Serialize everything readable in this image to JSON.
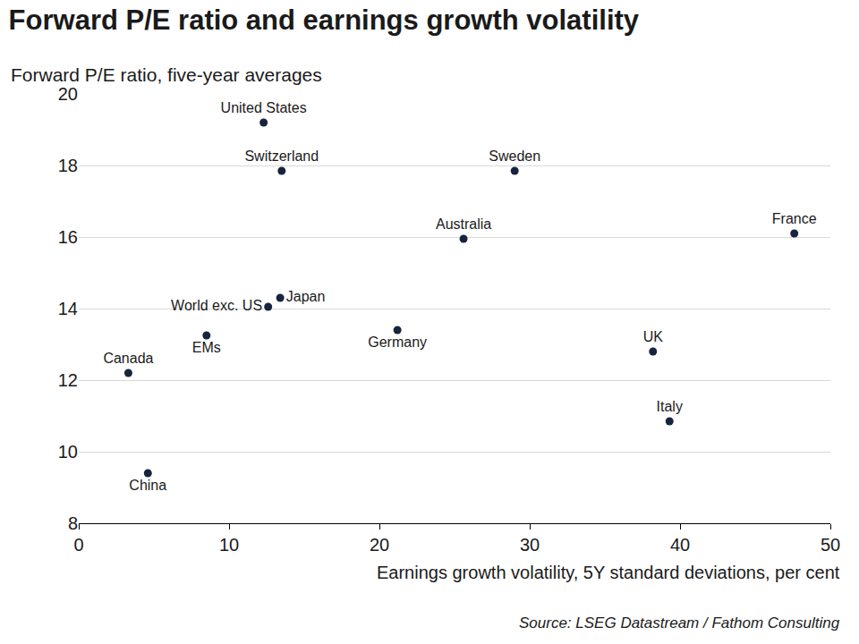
{
  "chart_data": {
    "type": "scatter",
    "title": "Forward P/E ratio and earnings growth volatility",
    "subtitle": "Forward P/E ratio, five-year averages",
    "x_label": "Earnings growth volatility, 5Y standard deviations, per cent",
    "source": "Source: LSEG Datastream / Fathom Consulting",
    "labels": [
      "United States",
      "Switzerland",
      "Sweden",
      "Australia",
      "France",
      "World exc. US",
      "Japan",
      "Germany",
      "EMs",
      "Canada",
      "UK",
      "Italy",
      "China"
    ],
    "x": [
      12.3,
      13.5,
      29.0,
      25.6,
      47.6,
      12.6,
      13.4,
      21.2,
      8.5,
      3.3,
      38.2,
      39.3,
      4.6
    ],
    "values": [
      19.2,
      17.85,
      17.85,
      15.95,
      16.1,
      14.05,
      14.3,
      13.4,
      13.25,
      12.2,
      12.8,
      10.85,
      9.4
    ],
    "color": "#17243d",
    "marker": "circle",
    "xlim": [
      0,
      50
    ],
    "xticks": [
      0,
      10,
      20,
      30,
      40,
      50
    ],
    "ylim": [
      8,
      20
    ],
    "yticks": [
      8,
      10,
      12,
      14,
      16,
      18,
      20
    ],
    "grid": true
  }
}
